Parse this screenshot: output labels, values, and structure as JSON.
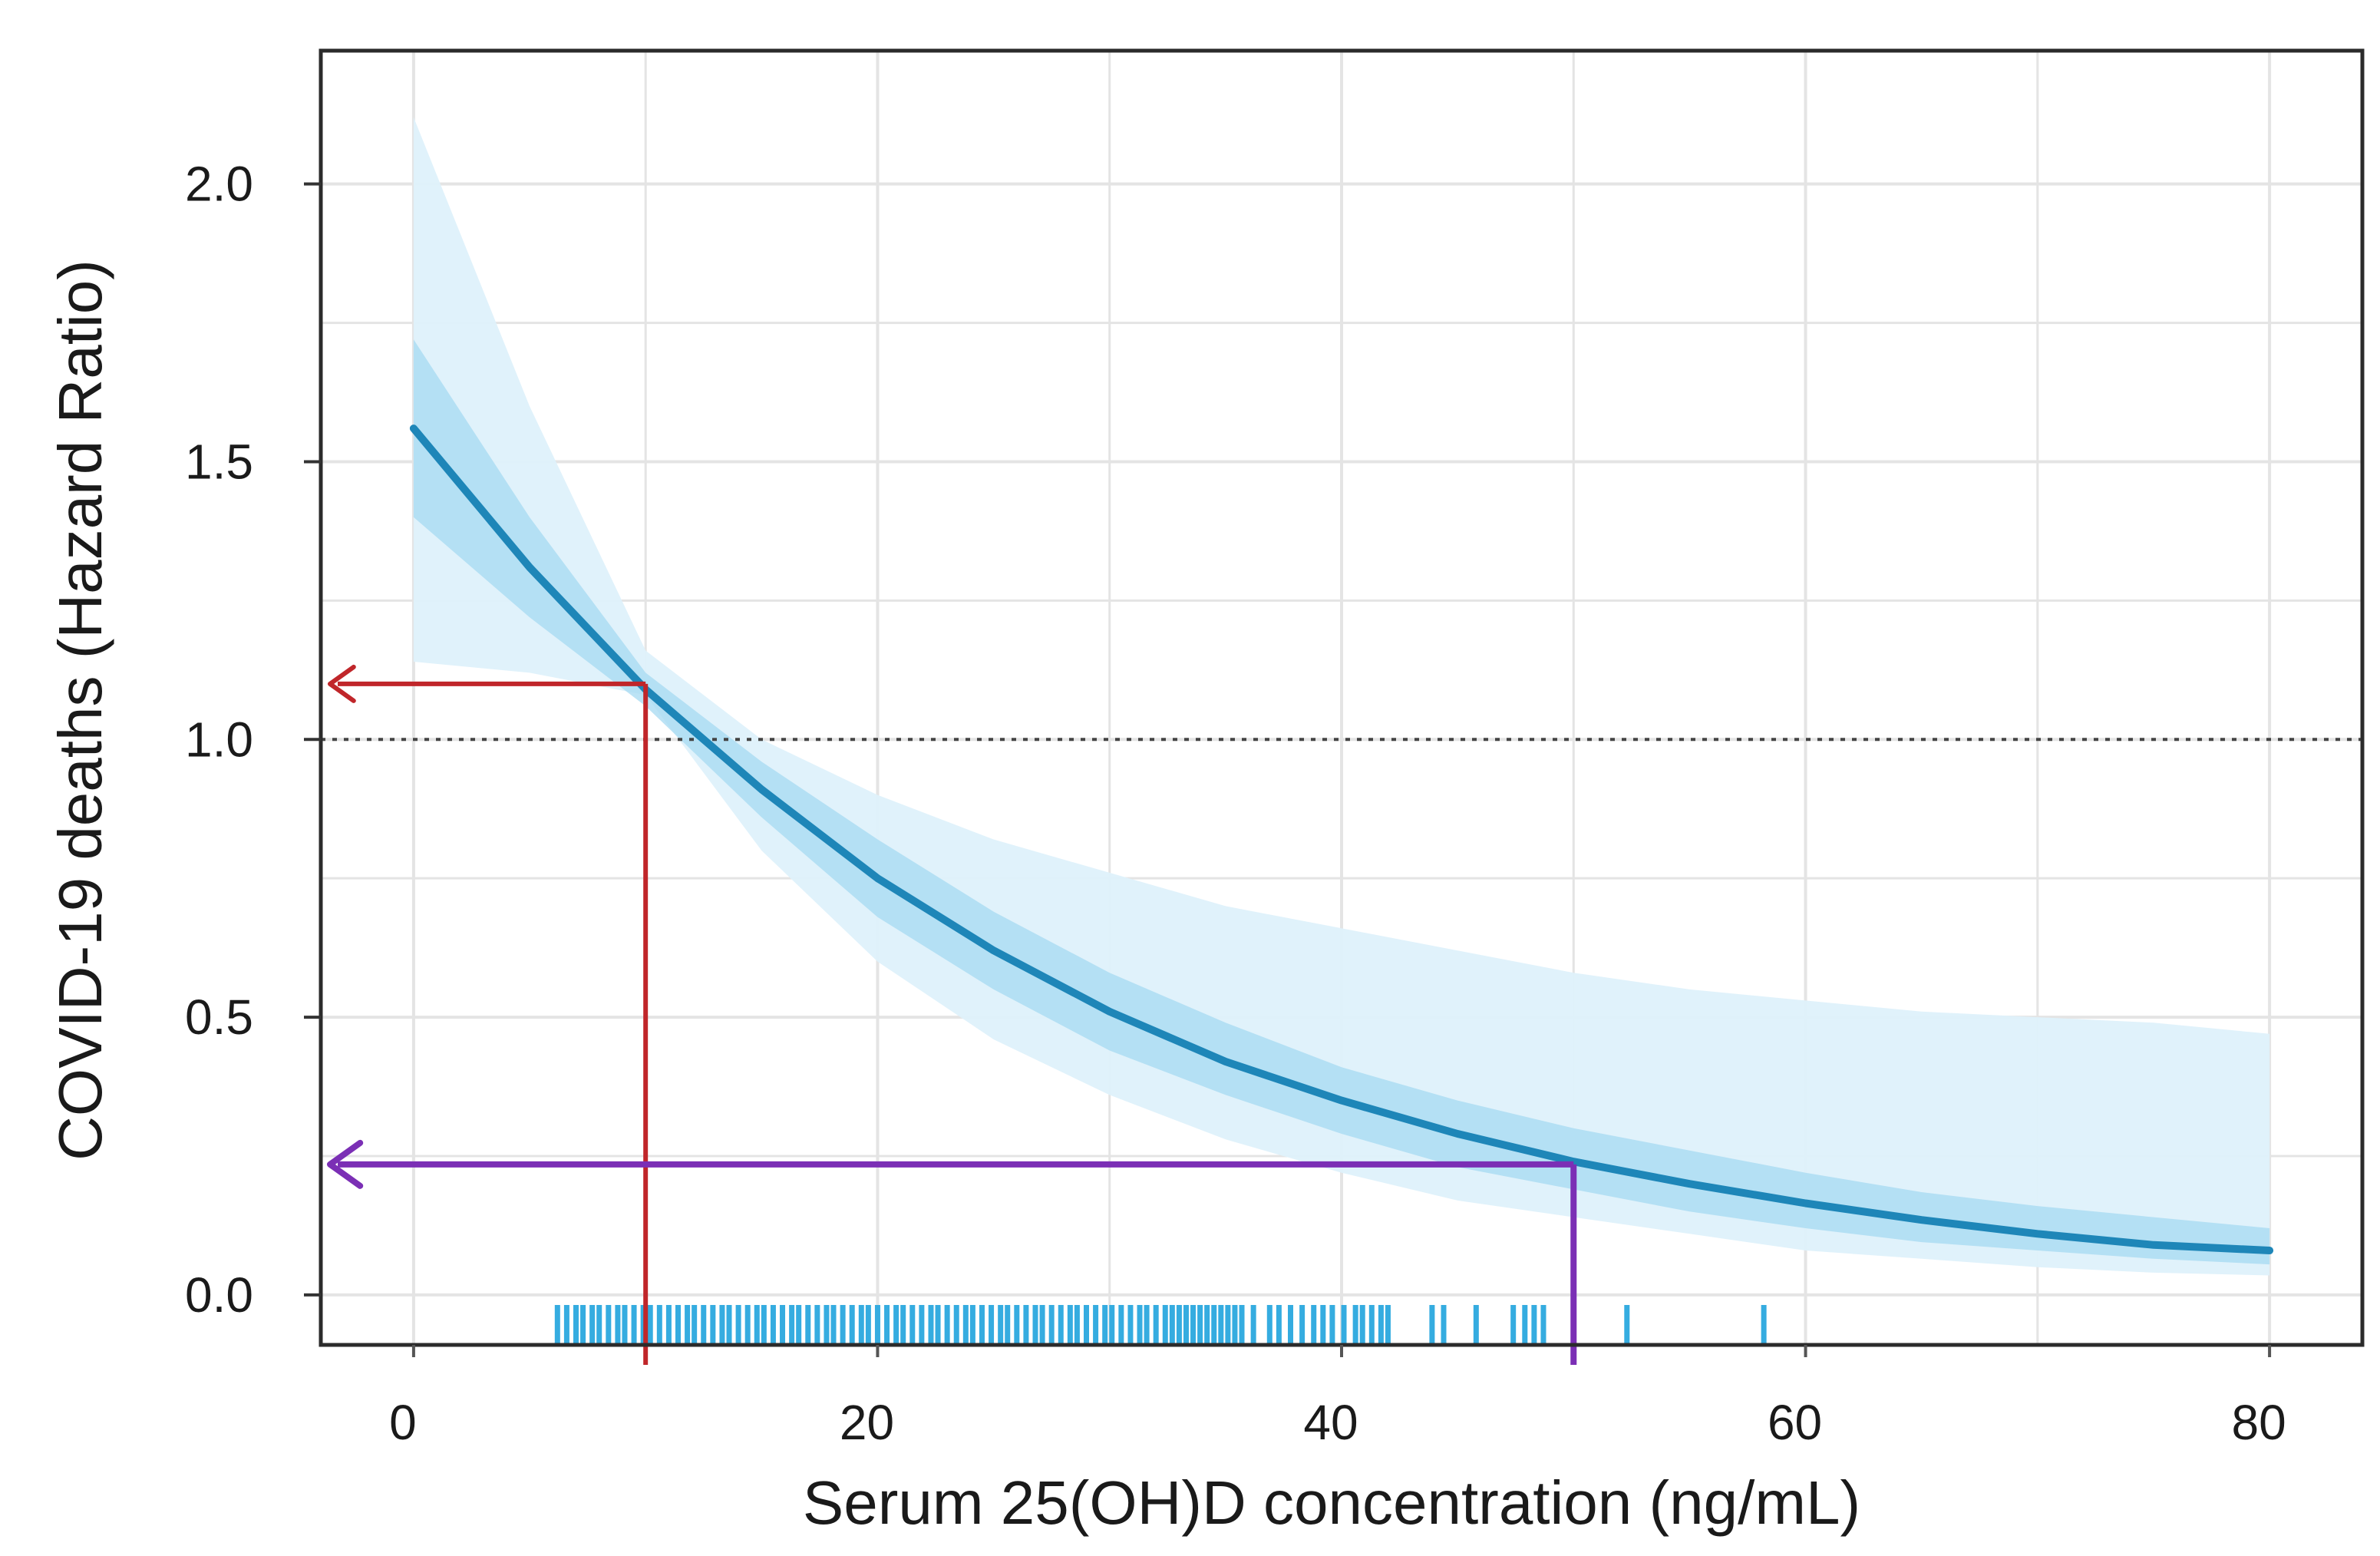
{
  "chart_data": {
    "type": "line",
    "title": "",
    "xlabel": "Serum 25(OH)D concentration (ng/mL)",
    "ylabel": "COVID-19 deaths (Hazard Ratio)",
    "xlim": [
      -4,
      84
    ],
    "ylim": [
      -0.09,
      2.24
    ],
    "x_ticks": [
      0,
      20,
      40,
      60,
      80
    ],
    "x_tick_labels": [
      "0",
      "20",
      "40",
      "60",
      "80"
    ],
    "y_ticks": [
      0.0,
      0.5,
      1.0,
      1.5,
      2.0
    ],
    "y_tick_labels": [
      "0.0",
      "0.5",
      "1.0",
      "1.5",
      "2.0"
    ],
    "grid": true,
    "reference_line": {
      "y": 1.0,
      "style": "dotted"
    },
    "series": [
      {
        "name": "Hazard ratio",
        "x": [
          0,
          5,
          10,
          15,
          20,
          25,
          30,
          35,
          40,
          45,
          50,
          55,
          60,
          65,
          70,
          75,
          80
        ],
        "y": [
          1.56,
          1.31,
          1.09,
          0.91,
          0.75,
          0.62,
          0.51,
          0.42,
          0.35,
          0.29,
          0.24,
          0.2,
          0.165,
          0.135,
          0.11,
          0.09,
          0.08
        ],
        "ci_inner_lower": [
          1.4,
          1.22,
          1.06,
          0.86,
          0.68,
          0.55,
          0.44,
          0.36,
          0.29,
          0.23,
          0.19,
          0.15,
          0.12,
          0.095,
          0.08,
          0.065,
          0.055
        ],
        "ci_inner_upper": [
          1.72,
          1.4,
          1.12,
          0.96,
          0.82,
          0.69,
          0.58,
          0.49,
          0.41,
          0.35,
          0.3,
          0.26,
          0.22,
          0.185,
          0.16,
          0.14,
          0.12
        ],
        "ci_outer_lower": [
          1.14,
          1.12,
          1.08,
          0.8,
          0.6,
          0.46,
          0.36,
          0.28,
          0.22,
          0.17,
          0.14,
          0.11,
          0.08,
          0.065,
          0.05,
          0.04,
          0.035
        ],
        "ci_outer_upper": [
          2.12,
          1.6,
          1.16,
          1.0,
          0.9,
          0.82,
          0.76,
          0.7,
          0.66,
          0.62,
          0.58,
          0.55,
          0.53,
          0.51,
          0.5,
          0.49,
          0.47
        ]
      }
    ],
    "annotations": [
      {
        "name": "red-guide",
        "x": 10,
        "y": 1.1,
        "color": "#c0262a"
      },
      {
        "name": "purple-guide",
        "x": 50,
        "y": 0.235,
        "color": "#7b2fb5"
      }
    ],
    "rug": [
      6.2,
      6.6,
      7.0,
      7.3,
      7.7,
      8.0,
      8.4,
      8.8,
      9.1,
      9.5,
      9.9,
      10.2,
      10.6,
      11.0,
      11.4,
      11.8,
      12.1,
      12.5,
      12.9,
      13.3,
      13.6,
      14.0,
      14.4,
      14.8,
      15.1,
      15.5,
      15.9,
      16.3,
      16.6,
      17.0,
      17.4,
      17.8,
      18.1,
      18.5,
      18.9,
      19.3,
      19.6,
      20.0,
      20.4,
      20.8,
      21.1,
      21.5,
      21.9,
      22.3,
      22.6,
      23.0,
      23.4,
      23.8,
      24.1,
      24.5,
      24.9,
      25.3,
      25.6,
      26.0,
      26.4,
      26.8,
      27.1,
      27.5,
      27.9,
      28.3,
      28.6,
      29.0,
      29.4,
      29.8,
      30.1,
      30.5,
      30.9,
      31.3,
      31.6,
      32.0,
      32.4,
      32.7,
      33.0,
      33.3,
      33.6,
      33.9,
      34.2,
      34.5,
      34.8,
      35.1,
      35.4,
      35.7,
      36.2,
      36.9,
      37.3,
      37.8,
      38.3,
      38.8,
      39.2,
      39.6,
      40.1,
      40.6,
      40.9,
      41.3,
      41.7,
      42.0,
      43.9,
      44.4,
      45.8,
      47.4,
      47.9,
      48.3,
      48.7,
      52.3,
      58.2
    ],
    "colors": {
      "line": "#1e86b8",
      "band_inner": "#a5d9f1",
      "band_outer": "#def1fb",
      "rug": "#35ace0",
      "grid": "#e4e4e4",
      "frame": "#2b2b2b"
    }
  }
}
